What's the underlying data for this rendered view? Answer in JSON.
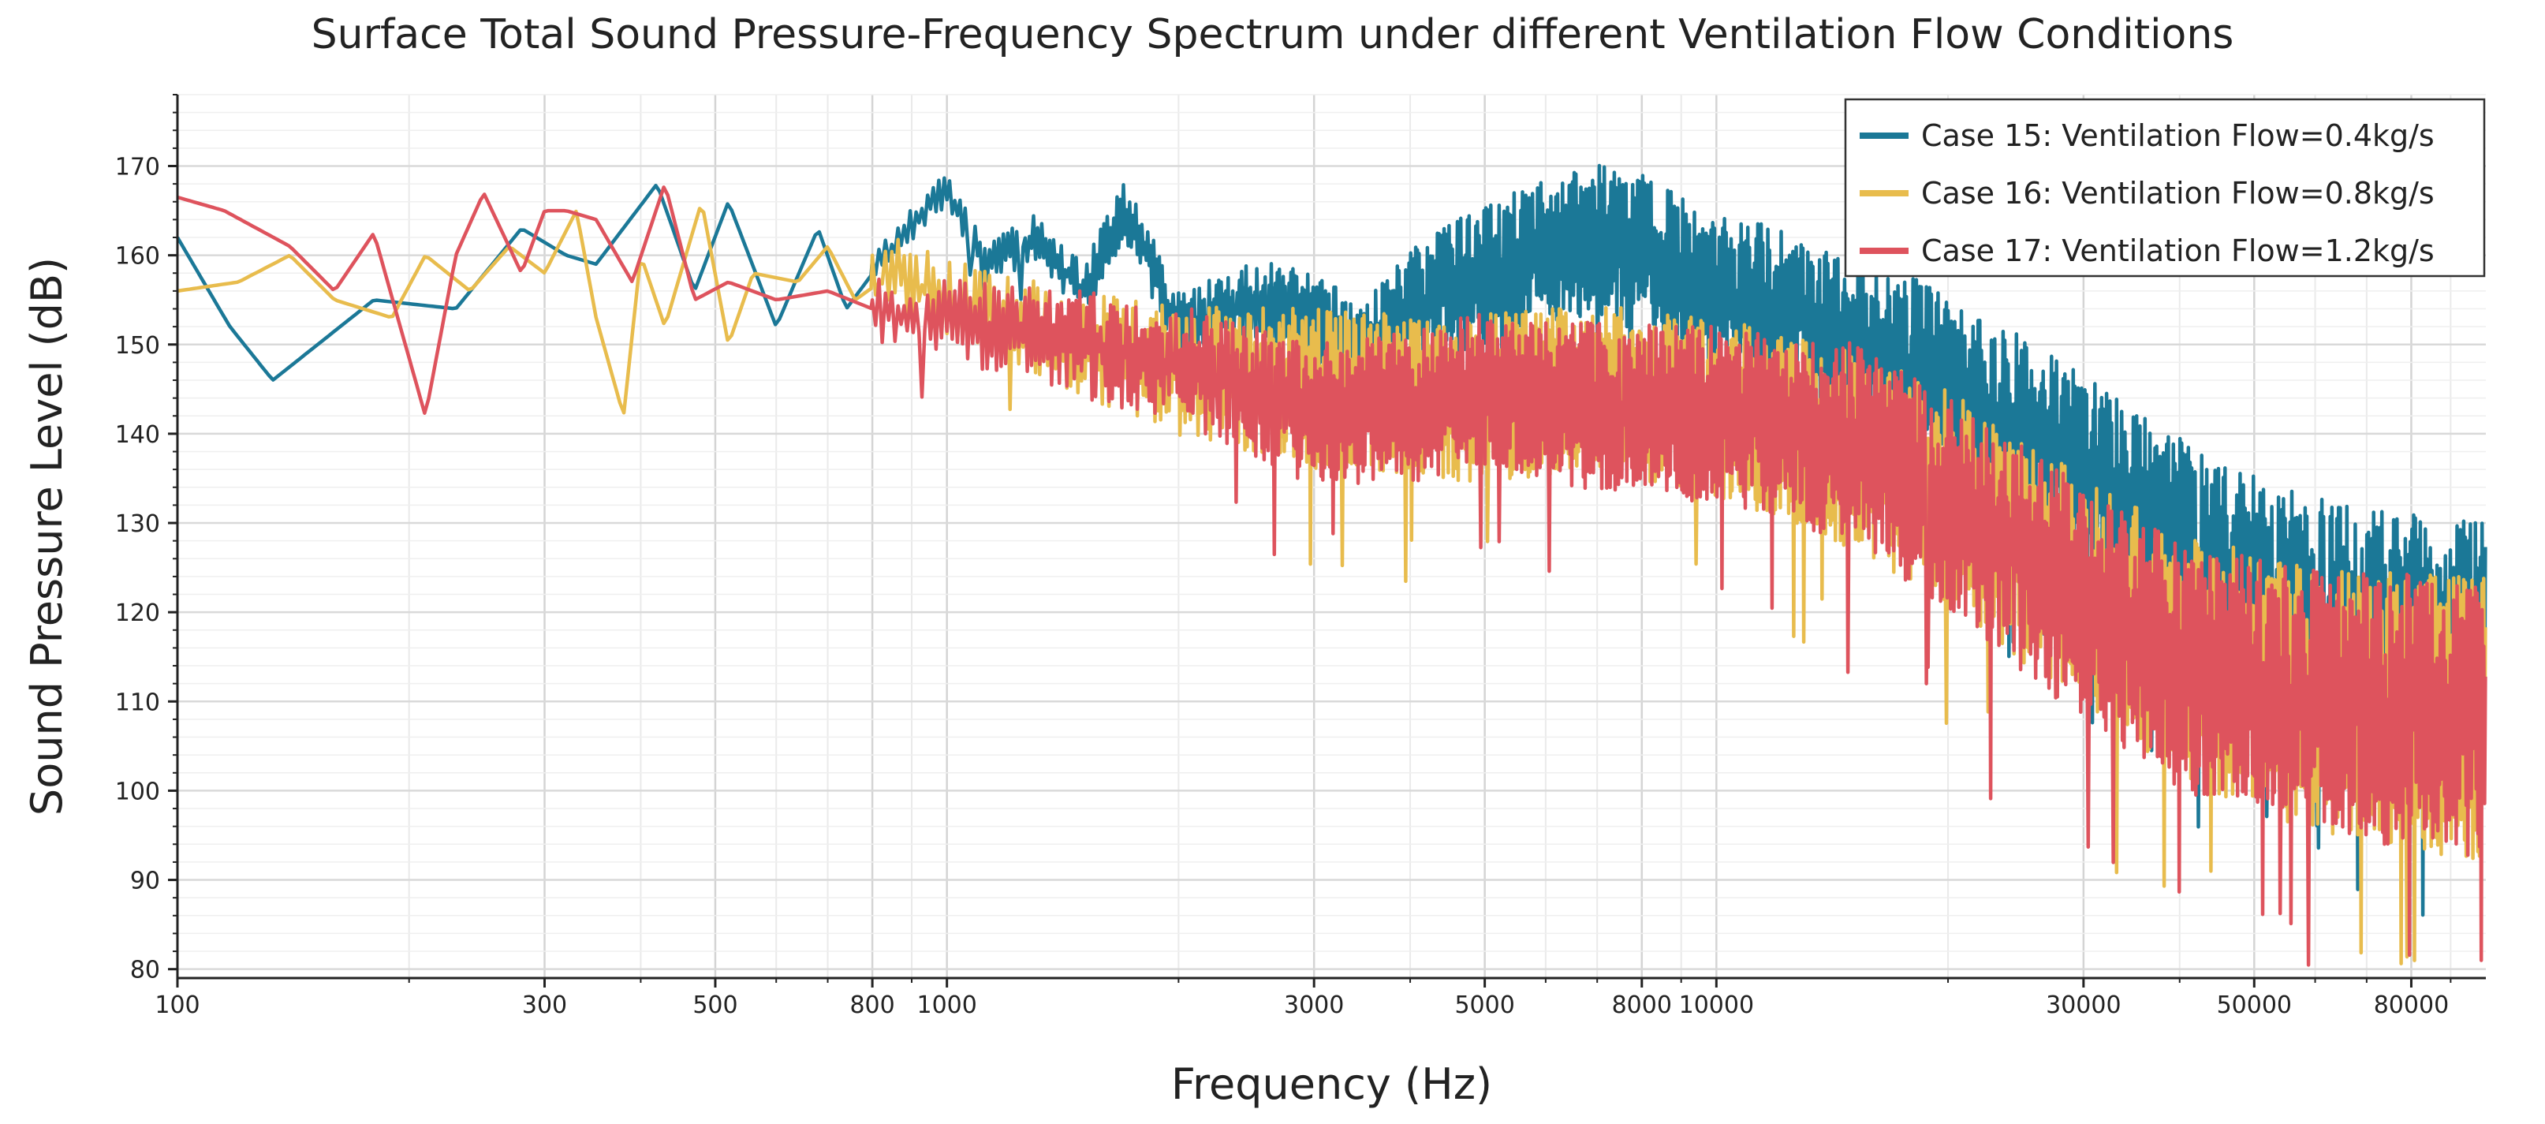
{
  "chart_data": {
    "type": "line",
    "title": "Surface Total Sound Pressure-Frequency Spectrum under different Ventilation Flow Conditions",
    "xlabel": "Frequency (Hz)",
    "ylabel": "Sound Pressure Level (dB)",
    "xscale": "log",
    "xlim": [
      100,
      100000
    ],
    "ylim": [
      79,
      178
    ],
    "grid": true,
    "legend_position": "top-right",
    "x_ticks": [
      100,
      300,
      500,
      800,
      1000,
      3000,
      5000,
      8000,
      10000,
      30000,
      50000,
      80000
    ],
    "x_tick_labels": [
      "100",
      "300",
      "500",
      "800",
      "1000",
      "3000",
      "5000",
      "8000",
      "10000",
      "30000",
      "50000",
      "80000"
    ],
    "y_ticks": [
      80,
      90,
      100,
      110,
      120,
      130,
      140,
      150,
      160,
      170
    ],
    "y_tick_labels": [
      "80",
      "90",
      "100",
      "110",
      "120",
      "130",
      "140",
      "150",
      "160",
      "170"
    ],
    "series": [
      {
        "name": "Case 15: Ventilation Flow=0.4kg/s",
        "color": "#1b7897",
        "key_points": [
          [
            100,
            162
          ],
          [
            117,
            152
          ],
          [
            133,
            146
          ],
          [
            180,
            155
          ],
          [
            230,
            154
          ],
          [
            280,
            163
          ],
          [
            320,
            160
          ],
          [
            350,
            159
          ],
          [
            420,
            168
          ],
          [
            470,
            156
          ],
          [
            520,
            166
          ],
          [
            600,
            152
          ],
          [
            680,
            163
          ],
          [
            740,
            154
          ],
          [
            850,
            161
          ],
          [
            1000,
            167.5
          ],
          [
            1130,
            159
          ],
          [
            1300,
            162
          ],
          [
            1500,
            156
          ],
          [
            1700,
            165
          ],
          [
            2000,
            152
          ],
          [
            2500,
            155
          ],
          [
            3000,
            153
          ],
          [
            3500,
            149
          ],
          [
            4000,
            154
          ],
          [
            5000,
            158
          ],
          [
            6000,
            160
          ],
          [
            7000,
            162
          ],
          [
            8000,
            160
          ],
          [
            9000,
            158
          ],
          [
            10000,
            156
          ],
          [
            12000,
            154
          ],
          [
            15000,
            150
          ],
          [
            18000,
            148
          ],
          [
            22000,
            143
          ],
          [
            28000,
            137
          ],
          [
            35000,
            130
          ],
          [
            45000,
            124
          ],
          [
            55000,
            120
          ],
          [
            65000,
            118
          ],
          [
            80000,
            117
          ],
          [
            100000,
            116
          ]
        ],
        "spread_points": [
          [
            100,
            0
          ],
          [
            1000,
            2
          ],
          [
            3000,
            5
          ],
          [
            5000,
            8
          ],
          [
            8000,
            9
          ],
          [
            15000,
            9
          ],
          [
            25000,
            11
          ],
          [
            40000,
            13
          ],
          [
            60000,
            14
          ],
          [
            100000,
            14
          ]
        ]
      },
      {
        "name": "Case 16: Ventilation Flow=0.8kg/s",
        "color": "#e8bc4d",
        "key_points": [
          [
            100,
            156
          ],
          [
            120,
            157
          ],
          [
            140,
            160
          ],
          [
            160,
            155
          ],
          [
            190,
            153
          ],
          [
            210,
            160
          ],
          [
            240,
            156
          ],
          [
            270,
            161
          ],
          [
            300,
            158
          ],
          [
            330,
            165
          ],
          [
            350,
            153
          ],
          [
            380,
            142
          ],
          [
            400,
            160
          ],
          [
            430,
            152
          ],
          [
            480,
            166
          ],
          [
            520,
            150
          ],
          [
            560,
            158
          ],
          [
            640,
            157
          ],
          [
            700,
            161
          ],
          [
            760,
            155
          ],
          [
            850,
            158
          ],
          [
            1000,
            155
          ],
          [
            1500,
            150
          ],
          [
            2000,
            147
          ],
          [
            3000,
            145
          ],
          [
            4000,
            144
          ],
          [
            5000,
            144
          ],
          [
            7000,
            145
          ],
          [
            10000,
            143
          ],
          [
            15000,
            138
          ],
          [
            20000,
            133
          ],
          [
            30000,
            122
          ],
          [
            40000,
            115
          ],
          [
            60000,
            110
          ],
          [
            100000,
            108
          ]
        ],
        "spread_points": [
          [
            100,
            0
          ],
          [
            800,
            4
          ],
          [
            1500,
            6
          ],
          [
            3000,
            9
          ],
          [
            10000,
            10
          ],
          [
            20000,
            12
          ],
          [
            40000,
            14
          ],
          [
            100000,
            16
          ]
        ]
      },
      {
        "name": "Case 17: Ventilation Flow=1.2kg/s",
        "color": "#de535d",
        "key_points": [
          [
            100,
            166.5
          ],
          [
            115,
            165
          ],
          [
            140,
            161
          ],
          [
            160,
            156
          ],
          [
            180,
            162.5
          ],
          [
            210,
            142
          ],
          [
            230,
            160
          ],
          [
            250,
            167
          ],
          [
            280,
            158
          ],
          [
            300,
            165
          ],
          [
            320,
            165
          ],
          [
            350,
            164
          ],
          [
            390,
            157
          ],
          [
            430,
            168
          ],
          [
            470,
            155
          ],
          [
            520,
            157
          ],
          [
            600,
            155
          ],
          [
            700,
            156
          ],
          [
            800,
            154
          ],
          [
            1000,
            153
          ],
          [
            1500,
            150
          ],
          [
            2000,
            148
          ],
          [
            3000,
            142
          ],
          [
            4000,
            143
          ],
          [
            5000,
            145
          ],
          [
            7000,
            143
          ],
          [
            10000,
            142
          ],
          [
            15000,
            139
          ],
          [
            20000,
            132
          ],
          [
            30000,
            121
          ],
          [
            40000,
            114
          ],
          [
            60000,
            110
          ],
          [
            100000,
            108
          ]
        ],
        "spread_points": [
          [
            100,
            0
          ],
          [
            800,
            4
          ],
          [
            1500,
            6
          ],
          [
            3000,
            8
          ],
          [
            10000,
            10
          ],
          [
            20000,
            12
          ],
          [
            40000,
            14
          ],
          [
            100000,
            16
          ]
        ]
      }
    ]
  }
}
